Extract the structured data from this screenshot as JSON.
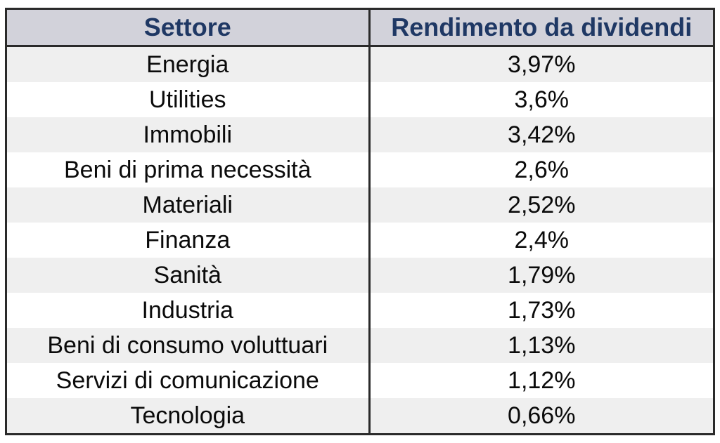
{
  "table": {
    "columns": [
      {
        "key": "sector",
        "label": "Settore"
      },
      {
        "key": "yield",
        "label": "Rendimento da dividendi"
      }
    ],
    "rows": [
      {
        "sector": "Energia",
        "yield": "3,97%"
      },
      {
        "sector": "Utilities",
        "yield": "3,6%"
      },
      {
        "sector": "Immobili",
        "yield": "3,42%"
      },
      {
        "sector": "Beni di prima necessità",
        "yield": "2,6%"
      },
      {
        "sector": "Materiali",
        "yield": "2,52%"
      },
      {
        "sector": "Finanza",
        "yield": "2,4%"
      },
      {
        "sector": "Sanità",
        "yield": "1,79%"
      },
      {
        "sector": "Industria",
        "yield": "1,73%"
      },
      {
        "sector": "Beni di consumo voluttuari",
        "yield": "1,13%"
      },
      {
        "sector": "Servizi di comunicazione",
        "yield": "1,12%"
      },
      {
        "sector": "Tecnologia",
        "yield": "0,66%"
      }
    ]
  },
  "colors": {
    "header_background": "#d2d2da",
    "header_text": "#1f3864",
    "row_alt_background": "#efefef",
    "row_background": "#ffffff",
    "border": "#2a2a2a",
    "body_text": "#0b0b0b"
  },
  "chart_data": {
    "type": "table",
    "title": "",
    "columns": [
      "Settore",
      "Rendimento da dividendi"
    ],
    "categories": [
      "Energia",
      "Utilities",
      "Immobili",
      "Beni di prima necessità",
      "Materiali",
      "Finanza",
      "Sanità",
      "Industria",
      "Beni di consumo voluttuari",
      "Servizi di comunicazione",
      "Tecnologia"
    ],
    "values": [
      3.97,
      3.6,
      3.42,
      2.6,
      2.52,
      2.4,
      1.79,
      1.73,
      1.13,
      1.12,
      0.66
    ],
    "value_unit": "%",
    "value_format": "comma-decimal"
  }
}
